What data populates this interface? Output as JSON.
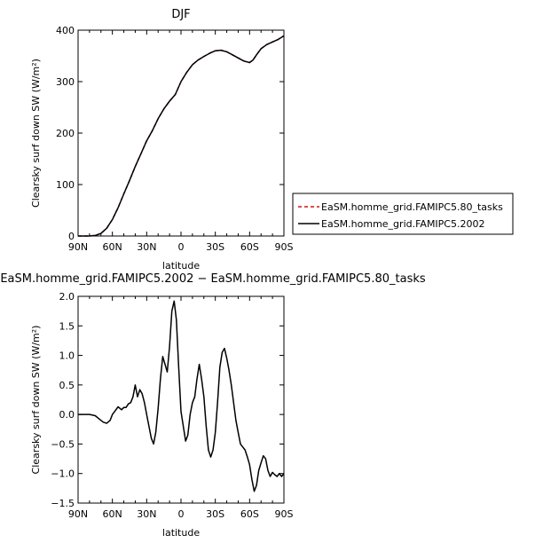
{
  "chart_data": [
    {
      "type": "line",
      "title": "DJF",
      "xlabel": "latitude",
      "ylabel": "Clearsky surf down SW (W/m²)",
      "xlim": [
        -90,
        90
      ],
      "ylim": [
        0,
        400
      ],
      "xtick_labels": [
        "90N",
        "60N",
        "30N",
        "0",
        "30S",
        "60S",
        "90S"
      ],
      "xtick_values": [
        -90,
        -60,
        -30,
        0,
        30,
        60,
        90
      ],
      "ytick_values": [
        0,
        100,
        200,
        300,
        400
      ],
      "ytick_labels": [
        "0",
        "100",
        "200",
        "300",
        "400"
      ],
      "legend_position": "right",
      "series": [
        {
          "name": "EaSM.homme_grid.FAMIPC5.80_tasks",
          "color": "#d21414",
          "dash": "dashed",
          "x": [
            -90,
            -85,
            -80,
            -75,
            -70,
            -65,
            -60,
            -55,
            -50,
            -45,
            -40,
            -35,
            -30,
            -25,
            -20,
            -15,
            -10,
            -5,
            0,
            5,
            10,
            15,
            20,
            25,
            30,
            35,
            40,
            45,
            50,
            55,
            60,
            63,
            66,
            70,
            75,
            80,
            85,
            90
          ],
          "y": [
            0,
            0,
            0,
            1,
            5,
            15,
            32,
            55,
            82,
            108,
            135,
            160,
            185,
            205,
            228,
            247,
            262,
            275,
            300,
            318,
            333,
            342,
            349,
            355,
            360,
            361,
            358,
            352,
            346,
            340,
            337,
            342,
            352,
            364,
            372,
            377,
            382,
            389
          ]
        },
        {
          "name": "EaSM.homme_grid.FAMIPC5.2002",
          "color": "#000000",
          "dash": "solid",
          "x": [
            -90,
            -85,
            -80,
            -75,
            -70,
            -65,
            -60,
            -55,
            -50,
            -45,
            -40,
            -35,
            -30,
            -25,
            -20,
            -15,
            -10,
            -5,
            0,
            5,
            10,
            15,
            20,
            25,
            30,
            35,
            40,
            45,
            50,
            55,
            60,
            63,
            66,
            70,
            75,
            80,
            85,
            90
          ],
          "y": [
            0,
            0,
            0,
            1,
            5,
            15,
            32,
            55,
            82,
            108,
            135,
            160,
            185,
            205,
            228,
            247,
            262,
            275,
            300,
            318,
            333,
            342,
            349,
            355,
            360,
            361,
            358,
            352,
            346,
            340,
            337,
            342,
            352,
            364,
            372,
            377,
            382,
            389
          ]
        }
      ]
    },
    {
      "type": "line",
      "title": "EaSM.homme_grid.FAMIPC5.2002 − EaSM.homme_grid.FAMIPC5.80_tasks",
      "xlabel": "latitude",
      "ylabel": "Clearsky surf down SW (W/m²)",
      "xlim": [
        -90,
        90
      ],
      "ylim": [
        -1.5,
        2.0
      ],
      "xtick_labels": [
        "90N",
        "60N",
        "30N",
        "0",
        "30S",
        "60S",
        "90S"
      ],
      "xtick_values": [
        -90,
        -60,
        -30,
        0,
        30,
        60,
        90
      ],
      "ytick_values": [
        -1.5,
        -1.0,
        -0.5,
        0.0,
        0.5,
        1.0,
        1.5,
        2.0
      ],
      "ytick_labels": [
        "−1.5",
        "−1.0",
        "−0.5",
        "0.0",
        "0.5",
        "1.0",
        "1.5",
        "2.0"
      ],
      "series": [
        {
          "name": "",
          "color": "#000000",
          "dash": "solid",
          "x": [
            -90,
            -85,
            -80,
            -75,
            -70,
            -68,
            -65,
            -62,
            -60,
            -58,
            -55,
            -52,
            -50,
            -48,
            -46,
            -44,
            -42,
            -40,
            -38,
            -36,
            -34,
            -32,
            -30,
            -28,
            -26,
            -24,
            -22,
            -20,
            -18,
            -16,
            -14,
            -12,
            -10,
            -8,
            -6,
            -4,
            -2,
            0,
            2,
            4,
            6,
            8,
            10,
            12,
            14,
            16,
            18,
            20,
            22,
            24,
            26,
            28,
            30,
            32,
            34,
            36,
            38,
            40,
            42,
            44,
            46,
            48,
            50,
            52,
            54,
            56,
            58,
            60,
            62,
            64,
            66,
            68,
            70,
            72,
            74,
            76,
            78,
            80,
            82,
            84,
            86,
            88,
            90
          ],
          "y": [
            0.0,
            0.0,
            0.0,
            -0.02,
            -0.1,
            -0.13,
            -0.15,
            -0.1,
            0.0,
            0.05,
            0.13,
            0.08,
            0.12,
            0.12,
            0.18,
            0.2,
            0.3,
            0.5,
            0.3,
            0.42,
            0.35,
            0.2,
            0.0,
            -0.2,
            -0.4,
            -0.5,
            -0.3,
            0.1,
            0.6,
            0.98,
            0.85,
            0.72,
            1.15,
            1.75,
            1.92,
            1.6,
            0.8,
            0.05,
            -0.2,
            -0.45,
            -0.35,
            0.0,
            0.2,
            0.3,
            0.6,
            0.85,
            0.6,
            0.3,
            -0.2,
            -0.6,
            -0.72,
            -0.6,
            -0.3,
            0.2,
            0.8,
            1.05,
            1.12,
            0.95,
            0.75,
            0.5,
            0.2,
            -0.1,
            -0.3,
            -0.5,
            -0.55,
            -0.6,
            -0.72,
            -0.85,
            -1.1,
            -1.3,
            -1.2,
            -0.95,
            -0.82,
            -0.7,
            -0.75,
            -0.95,
            -1.05,
            -0.98,
            -1.02,
            -1.05,
            -1.0,
            -1.05,
            -1.0
          ]
        }
      ]
    }
  ]
}
